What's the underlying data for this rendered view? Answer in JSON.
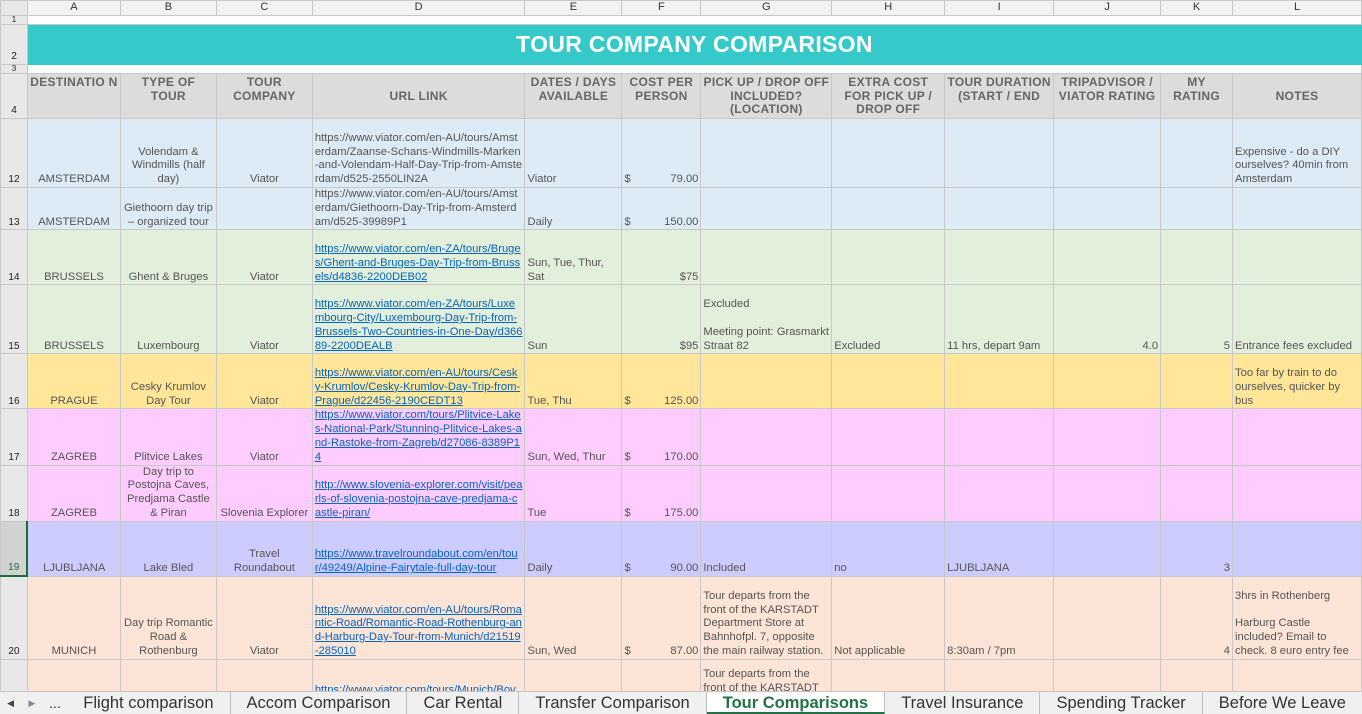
{
  "columns": [
    "A",
    "B",
    "C",
    "D",
    "E",
    "F",
    "G",
    "H",
    "I",
    "J",
    "K",
    "L"
  ],
  "title": "TOUR COMPANY COMPARISON",
  "row_numbers": {
    "r1": "1",
    "r2": "2",
    "r3": "3",
    "r4": "4"
  },
  "headers": {
    "a": "DESTINATIO N",
    "b": "TYPE OF TOUR",
    "c": "TOUR COMPANY",
    "d": "URL LINK",
    "e": "DATES / DAYS AVAILABLE",
    "f": "COST PER PERSON",
    "g": "PICK UP / DROP OFF INCLUDED? (LOCATION)",
    "h": "EXTRA COST FOR PICK UP / DROP OFF",
    "i": "TOUR DURATION (START / END",
    "j": "TRIPADVISOR / VIATOR RATING",
    "k": "MY RATING",
    "l": "NOTES"
  },
  "rows": [
    {
      "num": "12",
      "a": "AMSTERDAM",
      "b": "Volendam & Windmills (half day)",
      "c": "Viator",
      "d": "https://www.viator.com/en-AU/tours/Amsterdam/Zaanse-Schans-Windmills-Marken-and-Volendam-Half-Day-Trip-from-Amsterdam/d525-2550LIN2A",
      "e": "Viator",
      "f_sym": "$",
      "f": "79.00",
      "g": "",
      "h": "",
      "i": "",
      "j": "",
      "k": "",
      "l": "Expensive - do a DIY ourselves? 40min from Amsterdam"
    },
    {
      "num": "13",
      "a": "AMSTERDAM",
      "b": "Giethoorn day trip – organized tour",
      "c": "",
      "d": "https://www.viator.com/en-AU/tours/Amsterdam/Giethoorn-Day-Trip-from-Amsterdam/d525-39989P1",
      "e": "Daily",
      "f_sym": "$",
      "f": "150.00",
      "g": "",
      "h": "",
      "i": "",
      "j": "",
      "k": "",
      "l": ""
    },
    {
      "num": "14",
      "a": "BRUSSELS",
      "b": "Ghent & Bruges",
      "c": "Viator",
      "d": "https://www.viator.com/en-ZA/tours/Bruges/Ghent-and-Bruges-Day-Trip-from-Brussels/d4836-2200DEB02",
      "e": "Sun, Tue, Thur, Sat",
      "f_sym": "",
      "f": "$75",
      "g": "",
      "h": "",
      "i": "",
      "j": "",
      "k": "",
      "l": ""
    },
    {
      "num": "15",
      "a": "BRUSSELS",
      "b": "Luxembourg",
      "c": "Viator",
      "d": "https://www.viator.com/en-ZA/tours/Luxembourg-City/Luxembourg-Day-Trip-from-Brussels-Two-Countries-in-One-Day/d36689-2200DEALB",
      "e": "Sun",
      "f_sym": "",
      "f": "$95",
      "g": "Excluded\n\nMeeting point: Grasmarkt Straat 82",
      "h": "Excluded",
      "i": "11 hrs, depart 9am",
      "j": "4.0",
      "k": "5",
      "l": "Entrance fees excluded"
    },
    {
      "num": "16",
      "a": "PRAGUE",
      "b": "Cesky Krumlov Day Tour",
      "c": "Viator",
      "d": "https://www.viator.com/en-AU/tours/Cesky-Krumlov/Cesky-Krumlov-Day-Trip-from-Prague/d22456-2190CEDT13",
      "e": "Tue, Thu",
      "f_sym": "$",
      "f": "125.00",
      "g": "",
      "h": "",
      "i": "",
      "j": "",
      "k": "",
      "l": "Too far by train to do ourselves, quicker by bus"
    },
    {
      "num": "17",
      "a": "ZAGREB",
      "b": "Plitvice Lakes",
      "c": "Viator",
      "d": "https://www.viator.com/tours/Plitvice-Lakes-National-Park/Stunning-Plitvice-Lakes-and-Rastoke-from-Zagreb/d27086-8389P14",
      "e": "Sun, Wed, Thur",
      "f_sym": "$",
      "f": "170.00",
      "g": "",
      "h": "",
      "i": "",
      "j": "",
      "k": "",
      "l": ""
    },
    {
      "num": "18",
      "a": "ZAGREB",
      "b": "Day trip to Postojna Caves, Predjama Castle & Piran",
      "c": "Slovenia Explorer",
      "d": "http://www.slovenia-explorer.com/visit/pearls-of-slovenia-postojna-cave-predjama-castle-piran/",
      "e": "Tue",
      "f_sym": "$",
      "f": "175.00",
      "g": "",
      "h": "",
      "i": "",
      "j": "",
      "k": "",
      "l": ""
    },
    {
      "num": "19",
      "a": "LJUBLJANA",
      "b": "Lake Bled",
      "c": "Travel Roundabout",
      "d": "https://www.travelroundabout.com/en/tour/49249/Alpine-Fairytale-full-day-tour",
      "e": "Daily",
      "f_sym": "$",
      "f": "90.00",
      "g": "Included",
      "h": "no",
      "i": "LJUBLJANA",
      "j": "",
      "k": "3",
      "l": ""
    },
    {
      "num": "20",
      "a": "MUNICH",
      "b": "Day trip Romantic Road & Rothenburg",
      "c": "Viator",
      "d": "https://www.viator.com/en-AU/tours/Romantic-Road/Romantic-Road-Rothenburg-and-Harburg-Day-Tour-from-Munich/d21519-285010",
      "e": "Sun, Wed",
      "f_sym": "$",
      "f": "87.00",
      "g": "Tour departs from the front of the KARSTADT Department Store at Bahnhofpl. 7, opposite the main railway station.",
      "h": "Not applicable",
      "i": "8:30am / 7pm",
      "j": "",
      "k": "4",
      "l": "3hrs in Rothenberg\n\nHarburg Castle included? Email to check. 8 euro entry fee"
    },
    {
      "num": "",
      "a": "",
      "b": "",
      "c": "",
      "d": "https://www.viator.com/tours/Munich/Bov",
      "e": "",
      "f_sym": "",
      "f": "",
      "g": "Tour departs from the front of the KARSTADT",
      "h": "",
      "i": "",
      "j": "",
      "k": "",
      "l": ""
    }
  ],
  "sheet_tabs": {
    "more": "...",
    "t1": "Flight comparison",
    "t2": "Accom Comparison",
    "t3": "Car Rental",
    "t4": "Transfer Comparison",
    "t5": "Tour Comparisons",
    "t6": "Travel Insurance",
    "t7": "Spending Tracker",
    "t8": "Before We Leave"
  },
  "colors": {
    "title_bg": "#36c9c9",
    "active_tab": "#217346",
    "link": "#0563c1"
  }
}
